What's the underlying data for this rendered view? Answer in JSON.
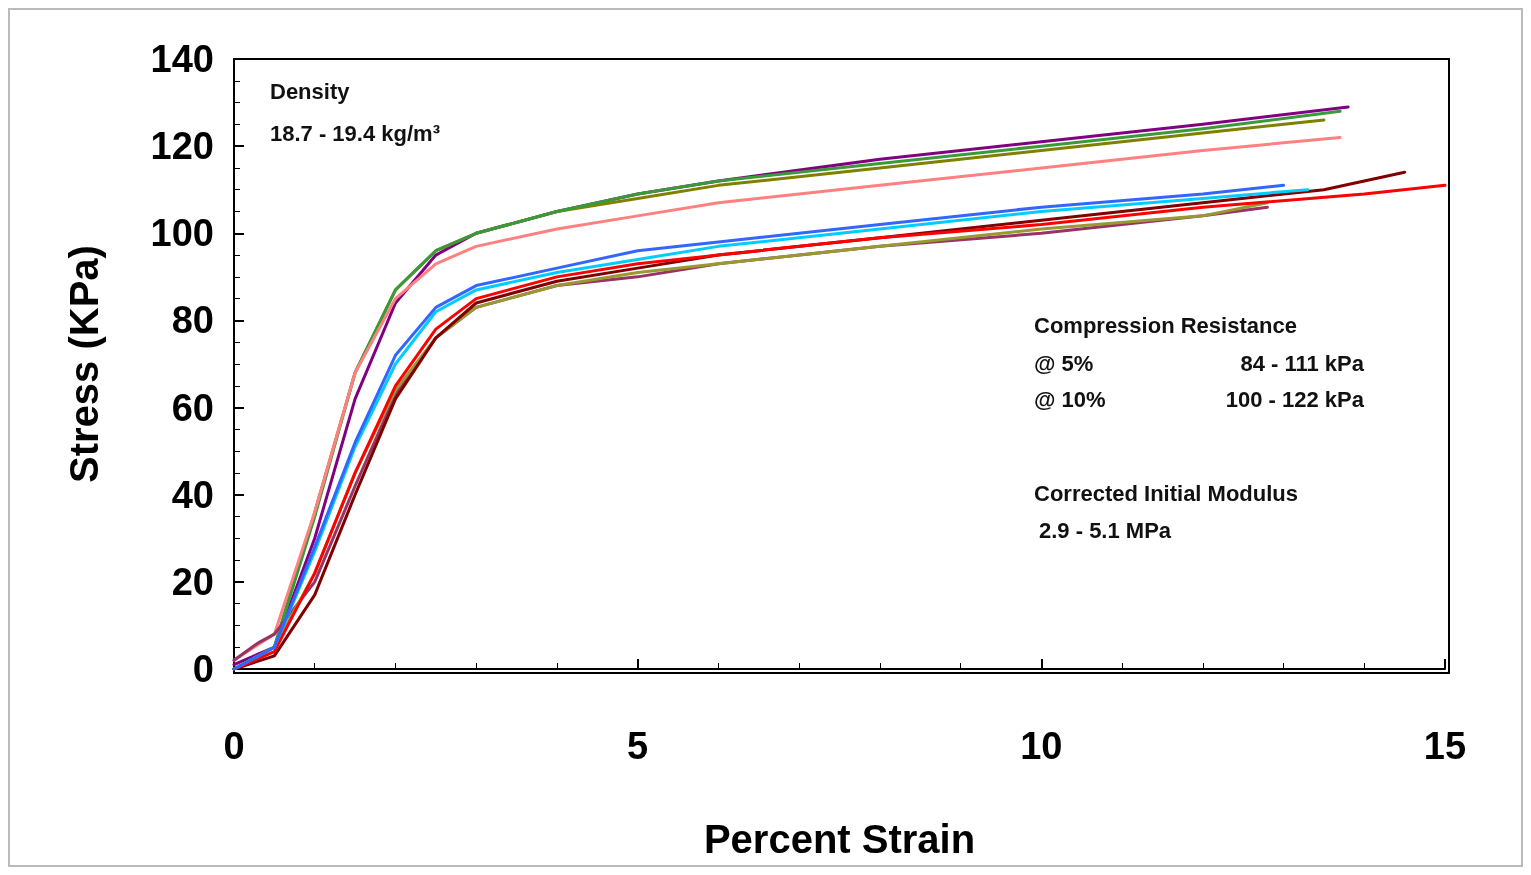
{
  "chart_data": {
    "type": "line",
    "xlabel": "Percent Strain",
    "ylabel": "Stress (KPa)",
    "xlim": [
      0,
      15
    ],
    "xticks": [
      0,
      5,
      10,
      15
    ],
    "ylim": [
      0,
      140
    ],
    "yticks": [
      0,
      20,
      40,
      60,
      80,
      100,
      120,
      140
    ],
    "grid": false,
    "marker": "none",
    "line_style": "solid",
    "annotations": [
      "Density",
      "18.7 - 19.4 kg/m³",
      "Compression Resistance",
      "@ 5%",
      "84 - 111 kPa",
      "@ 10%",
      "100 - 122 kPa",
      "Corrected Initial Modulus",
      "2.9 - 5.1 MPa"
    ],
    "series": [
      {
        "color": "#800080",
        "x": [
          0,
          0.5,
          1,
          1.5,
          2,
          2.5,
          3,
          4,
          5,
          6,
          8,
          10,
          12,
          13.8
        ],
        "values": [
          1,
          5,
          30,
          62,
          84,
          95,
          100,
          105,
          109,
          112,
          117,
          121,
          125,
          129
        ]
      },
      {
        "color": "#808000",
        "x": [
          0,
          0.5,
          1,
          1.5,
          2,
          2.5,
          3,
          4,
          5,
          6,
          8,
          10,
          12,
          13.5
        ],
        "values": [
          0,
          5,
          36,
          68,
          87,
          96,
          100,
          105,
          108,
          111,
          115,
          119,
          123,
          126
        ]
      },
      {
        "color": "#3a9a3a",
        "x": [
          0,
          0.5,
          1,
          1.5,
          2,
          2.5,
          3,
          4,
          5,
          6,
          8,
          10,
          12,
          13.7
        ],
        "values": [
          0,
          5,
          35,
          68,
          87,
          96,
          100,
          105,
          109,
          112,
          116,
          120,
          124,
          128
        ]
      },
      {
        "color": "#ff8080",
        "x": [
          0,
          0.5,
          1,
          1.5,
          2,
          2.5,
          3,
          4,
          5,
          6,
          8,
          10,
          12,
          13.7
        ],
        "values": [
          2,
          8,
          36,
          68,
          85,
          93,
          97,
          101,
          104,
          107,
          111,
          115,
          119,
          122
        ]
      },
      {
        "color": "#993366",
        "x": [
          0,
          0.3,
          0.5,
          1,
          1.5,
          2,
          2.5,
          3,
          4,
          5,
          6,
          8,
          10,
          12,
          12.8
        ],
        "values": [
          2,
          6,
          8,
          20,
          42,
          63,
          76,
          83,
          88,
          90,
          93,
          97,
          100,
          104,
          106
        ]
      },
      {
        "color": "#999933",
        "x": [
          0,
          0.5,
          1,
          1.5,
          2,
          2.5,
          3,
          4,
          5,
          6,
          8,
          10,
          12,
          12.8
        ],
        "values": [
          0,
          5,
          22,
          45,
          64,
          76,
          83,
          88,
          91,
          93,
          97,
          101,
          104,
          107
        ]
      },
      {
        "color": "#800000",
        "x": [
          0,
          0.5,
          1,
          1.5,
          2,
          2.5,
          3,
          4,
          5,
          6,
          8,
          10,
          12,
          13.5,
          14.5
        ],
        "values": [
          0,
          3,
          17,
          40,
          62,
          76,
          84,
          89,
          92,
          95,
          99,
          103,
          107,
          110,
          114
        ]
      },
      {
        "color": "#ff0000",
        "x": [
          0,
          0.5,
          1,
          1.5,
          2,
          2.5,
          3,
          4,
          5,
          6,
          8,
          10,
          12,
          14,
          15
        ],
        "values": [
          0,
          4,
          22,
          45,
          65,
          78,
          85,
          90,
          93,
          95,
          99,
          102,
          106,
          109,
          111
        ]
      },
      {
        "color": "#00ccff",
        "x": [
          0,
          0.5,
          1,
          1.5,
          2,
          2.5,
          3,
          4,
          5,
          6,
          8,
          10,
          12,
          13.3
        ],
        "values": [
          0,
          5,
          27,
          51,
          70,
          82,
          87,
          91,
          94,
          97,
          101,
          105,
          108,
          110
        ]
      },
      {
        "color": "#3366ff",
        "x": [
          0,
          0.5,
          1,
          1.5,
          2,
          2.5,
          3,
          4,
          5,
          6,
          8,
          10,
          12,
          13
        ],
        "values": [
          0,
          5,
          28,
          52,
          72,
          83,
          88,
          92,
          96,
          98,
          102,
          106,
          109,
          111
        ]
      }
    ]
  }
}
